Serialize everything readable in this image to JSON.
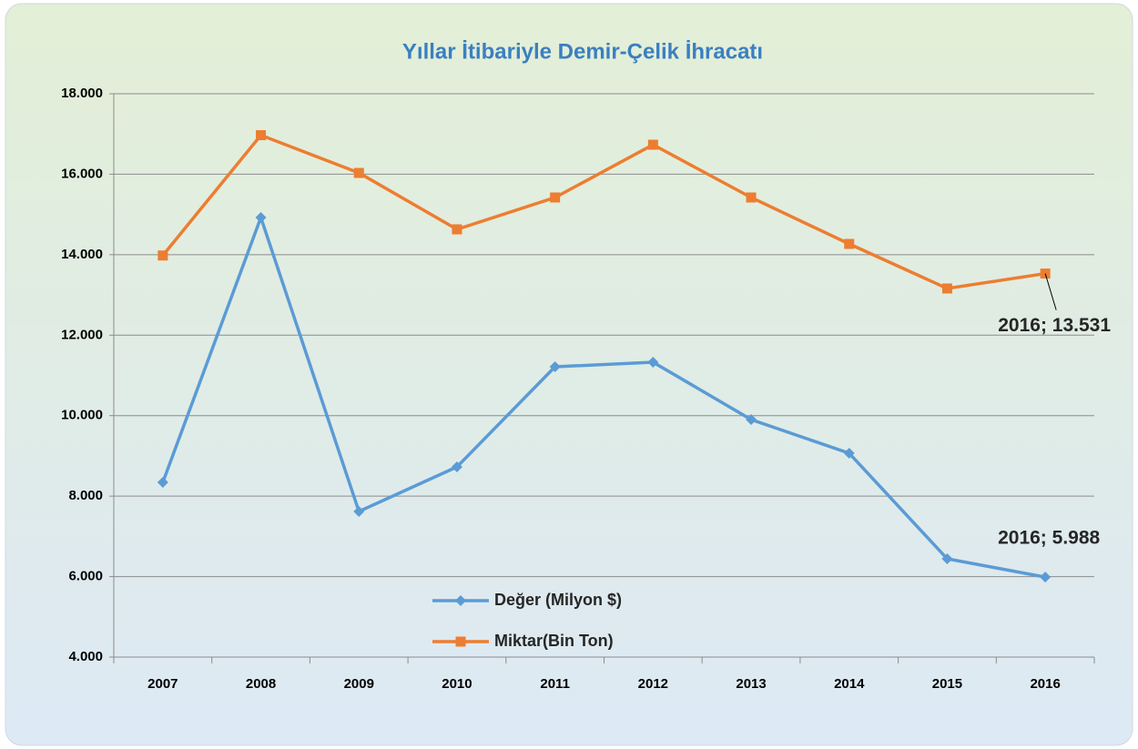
{
  "chart_data": {
    "type": "line",
    "title": "Yıllar İtibariyle Demir-Çelik İhracatı",
    "categories": [
      "2007",
      "2008",
      "2009",
      "2010",
      "2011",
      "2012",
      "2013",
      "2014",
      "2015",
      "2016"
    ],
    "series": [
      {
        "name": "Değer (Milyon $)",
        "color": "#5b9bd5",
        "marker": "diamond",
        "values": [
          8343,
          14924,
          7619,
          8727,
          11215,
          11328,
          9903,
          9066,
          6442,
          5988
        ],
        "value_labels": [
          null,
          null,
          null,
          null,
          null,
          null,
          null,
          null,
          null,
          "2016; 5.988"
        ]
      },
      {
        "name": "Miktar(Bin Ton)",
        "color": "#ed7d31",
        "marker": "square",
        "values": [
          13980,
          16970,
          16032,
          14630,
          15422,
          16733,
          15422,
          14268,
          13160,
          13531
        ],
        "value_labels": [
          null,
          null,
          null,
          null,
          null,
          null,
          null,
          null,
          null,
          "2016; 13.531"
        ]
      }
    ],
    "ylim": [
      4000,
      18000
    ],
    "yticks": [
      {
        "value": 4000,
        "label": "4.000"
      },
      {
        "value": 6000,
        "label": "6.000"
      },
      {
        "value": 8000,
        "label": "8.000"
      },
      {
        "value": 10000,
        "label": "10.000"
      },
      {
        "value": 12000,
        "label": "12.000"
      },
      {
        "value": 14000,
        "label": "14.000"
      },
      {
        "value": 16000,
        "label": "16.000"
      },
      {
        "value": 18000,
        "label": "18.000"
      }
    ],
    "grid": true
  }
}
